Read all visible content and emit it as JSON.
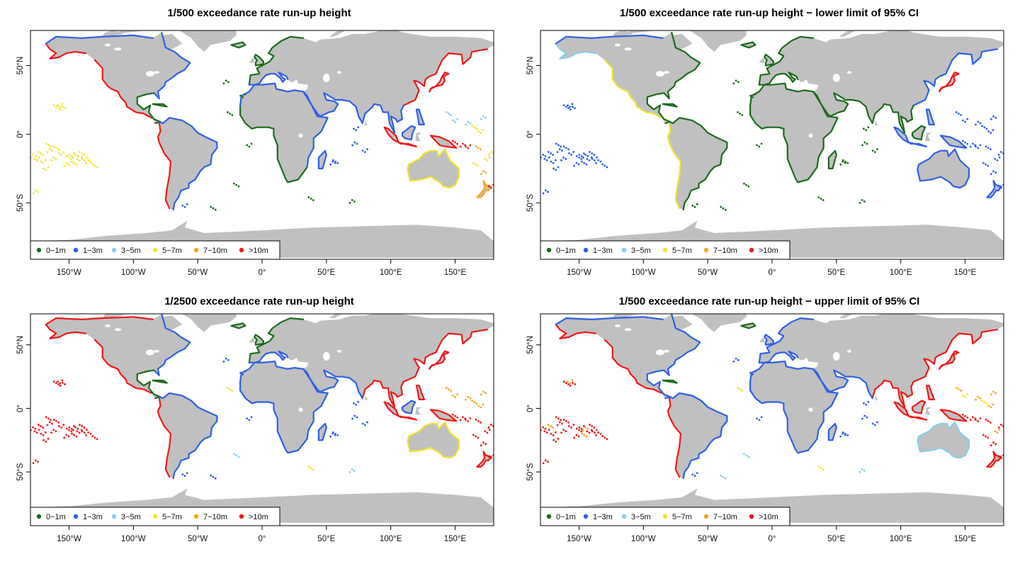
{
  "legend": {
    "classes": [
      {
        "label": "0−1m",
        "color": "#1a6b1a"
      },
      {
        "label": "1−3m",
        "color": "#2e5fe6"
      },
      {
        "label": "3−5m",
        "color": "#87ceeb"
      },
      {
        "label": "5−7m",
        "color": "#f2e332"
      },
      {
        "label": "7−10m",
        "color": "#f5a623"
      },
      {
        "label": ">10m",
        "color": "#f01818"
      }
    ]
  },
  "axes": {
    "x_ticks": [
      "150°W",
      "100°W",
      "50°W",
      "0°",
      "50°E",
      "100°E",
      "150°E"
    ],
    "y_ticks": [
      "50°N",
      "0°",
      "50°S"
    ]
  },
  "land_color": "#c0c0c0",
  "panels": [
    {
      "title": "1/500 exceedance rate run-up height"
    },
    {
      "title": "1/500 exceedance rate run-up height − lower limit of 95% CI"
    },
    {
      "title": "1/2500 exceedance rate run-up height"
    },
    {
      "title": "1/500 exceedance rate run-up height − upper limit of 95% CI"
    }
  ]
}
